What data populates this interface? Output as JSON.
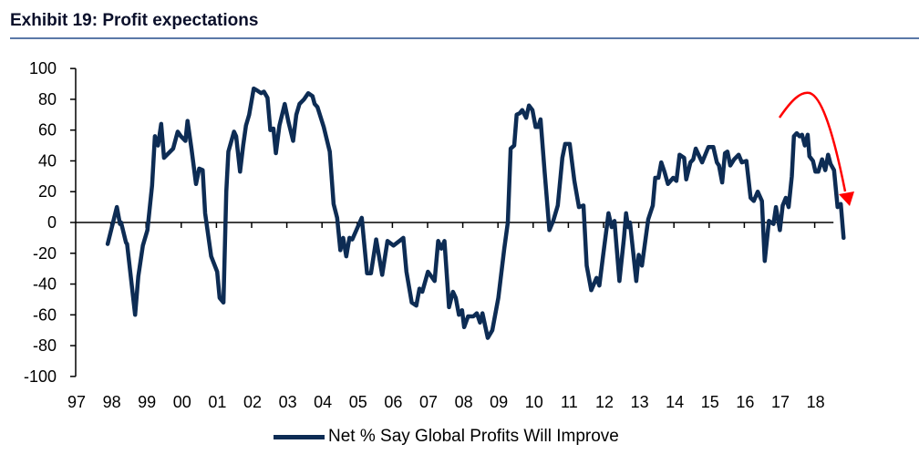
{
  "header": {
    "title": "Exhibit 19: Profit expectations"
  },
  "chart_data": {
    "type": "line",
    "title": "Exhibit 19: Profit expectations",
    "xlabel": "",
    "ylabel": "",
    "ylim": [
      -100,
      100
    ],
    "yticks": [
      "100",
      "80",
      "60",
      "40",
      "20",
      "0",
      "-20",
      "-40",
      "-60",
      "-80",
      "-100"
    ],
    "xticks": [
      "97",
      "98",
      "99",
      "00",
      "01",
      "02",
      "03",
      "04",
      "05",
      "06",
      "07",
      "08",
      "09",
      "10",
      "11",
      "12",
      "13",
      "14",
      "15",
      "16",
      "17",
      "18"
    ],
    "xlim": [
      1997,
      2019
    ],
    "grid": false,
    "legend_position": "bottom",
    "line_color": "#0d2c54",
    "annotation": {
      "type": "red-arrow-curve-down",
      "color": "#ff0000"
    },
    "series": [
      {
        "name": "Net % Say Global Profits Will Improve",
        "points": [
          [
            1997.91,
            -14
          ],
          [
            1998.17,
            10
          ],
          [
            1998.26,
            -1
          ],
          [
            1998.29,
            0
          ],
          [
            1998.43,
            -13
          ],
          [
            1998.46,
            -14
          ],
          [
            1998.69,
            -60
          ],
          [
            1998.78,
            -35
          ],
          [
            1998.91,
            -15
          ],
          [
            1999.04,
            -5
          ],
          [
            1999.17,
            24
          ],
          [
            1999.25,
            56
          ],
          [
            1999.34,
            50
          ],
          [
            1999.43,
            64
          ],
          [
            1999.51,
            42
          ],
          [
            1999.64,
            45
          ],
          [
            1999.77,
            48
          ],
          [
            1999.9,
            59
          ],
          [
            1999.99,
            56
          ],
          [
            2000.12,
            53
          ],
          [
            2000.18,
            66
          ],
          [
            2000.29,
            48
          ],
          [
            2000.42,
            25
          ],
          [
            2000.51,
            35
          ],
          [
            2000.61,
            34
          ],
          [
            2000.68,
            6
          ],
          [
            2000.85,
            -22
          ],
          [
            2001.02,
            -32
          ],
          [
            2001.09,
            -49
          ],
          [
            2001.2,
            -52
          ],
          [
            2001.28,
            20
          ],
          [
            2001.34,
            46
          ],
          [
            2001.5,
            59
          ],
          [
            2001.56,
            56
          ],
          [
            2001.67,
            33
          ],
          [
            2001.76,
            50
          ],
          [
            2001.84,
            63
          ],
          [
            2001.93,
            70
          ],
          [
            2002.06,
            87
          ],
          [
            2002.14,
            86
          ],
          [
            2002.27,
            84
          ],
          [
            2002.35,
            85
          ],
          [
            2002.45,
            81
          ],
          [
            2002.53,
            60
          ],
          [
            2002.62,
            61
          ],
          [
            2002.69,
            45
          ],
          [
            2002.79,
            63
          ],
          [
            2002.94,
            77
          ],
          [
            2003.05,
            65
          ],
          [
            2003.18,
            53
          ],
          [
            2003.27,
            70
          ],
          [
            2003.36,
            77
          ],
          [
            2003.49,
            80
          ],
          [
            2003.61,
            84
          ],
          [
            2003.73,
            82
          ],
          [
            2003.79,
            77
          ],
          [
            2003.87,
            75
          ],
          [
            2004.05,
            62
          ],
          [
            2004.22,
            46
          ],
          [
            2004.33,
            12
          ],
          [
            2004.43,
            3
          ],
          [
            2004.52,
            -18
          ],
          [
            2004.6,
            -10
          ],
          [
            2004.69,
            -22
          ],
          [
            2004.78,
            -10
          ],
          [
            2004.86,
            -11
          ],
          [
            2005.13,
            3
          ],
          [
            2005.28,
            -33
          ],
          [
            2005.39,
            -33
          ],
          [
            2005.54,
            -11
          ],
          [
            2005.71,
            -34
          ],
          [
            2005.86,
            -12
          ],
          [
            2006.03,
            -15
          ],
          [
            2006.2,
            -12
          ],
          [
            2006.31,
            -10
          ],
          [
            2006.4,
            -32
          ],
          [
            2006.55,
            -52
          ],
          [
            2006.68,
            -54
          ],
          [
            2006.77,
            -43
          ],
          [
            2006.85,
            -45
          ],
          [
            2007.01,
            -32
          ],
          [
            2007.2,
            -38
          ],
          [
            2007.3,
            -12
          ],
          [
            2007.39,
            -17
          ],
          [
            2007.48,
            -12
          ],
          [
            2007.61,
            -55
          ],
          [
            2007.72,
            -45
          ],
          [
            2007.8,
            -49
          ],
          [
            2007.89,
            -60
          ],
          [
            2007.98,
            -57
          ],
          [
            2008.04,
            -68
          ],
          [
            2008.15,
            -61
          ],
          [
            2008.3,
            -61
          ],
          [
            2008.4,
            -59
          ],
          [
            2008.49,
            -65
          ],
          [
            2008.56,
            -59
          ],
          [
            2008.71,
            -75
          ],
          [
            2008.84,
            -70
          ],
          [
            2009.01,
            -49
          ],
          [
            2009.18,
            -17
          ],
          [
            2009.28,
            0
          ],
          [
            2009.36,
            48
          ],
          [
            2009.46,
            50
          ],
          [
            2009.53,
            70
          ],
          [
            2009.62,
            71
          ],
          [
            2009.69,
            73
          ],
          [
            2009.8,
            68
          ],
          [
            2009.88,
            76
          ],
          [
            2009.98,
            73
          ],
          [
            2010.07,
            62
          ],
          [
            2010.14,
            62
          ],
          [
            2010.21,
            67
          ],
          [
            2010.33,
            32
          ],
          [
            2010.46,
            -5
          ],
          [
            2010.57,
            1
          ],
          [
            2010.7,
            11
          ],
          [
            2010.83,
            42
          ],
          [
            2010.91,
            51
          ],
          [
            2011.04,
            51
          ],
          [
            2011.17,
            27
          ],
          [
            2011.3,
            10
          ],
          [
            2011.43,
            11
          ],
          [
            2011.52,
            -28
          ],
          [
            2011.65,
            -44
          ],
          [
            2011.8,
            -36
          ],
          [
            2011.88,
            -41
          ],
          [
            2011.99,
            -21
          ],
          [
            2012.08,
            -5
          ],
          [
            2012.14,
            6
          ],
          [
            2012.23,
            -3
          ],
          [
            2012.31,
            1
          ],
          [
            2012.45,
            -38
          ],
          [
            2012.58,
            -10
          ],
          [
            2012.64,
            6
          ],
          [
            2012.7,
            -3
          ],
          [
            2012.75,
            0
          ],
          [
            2012.93,
            -38
          ],
          [
            2013.0,
            -21
          ],
          [
            2013.09,
            -28
          ],
          [
            2013.27,
            2
          ],
          [
            2013.4,
            11
          ],
          [
            2013.47,
            29
          ],
          [
            2013.56,
            29
          ],
          [
            2013.64,
            39
          ],
          [
            2013.73,
            33
          ],
          [
            2013.83,
            25
          ],
          [
            2013.98,
            29
          ],
          [
            2014.07,
            27
          ],
          [
            2014.16,
            44
          ],
          [
            2014.29,
            42
          ],
          [
            2014.35,
            28
          ],
          [
            2014.47,
            39
          ],
          [
            2014.55,
            41
          ],
          [
            2014.62,
            48
          ],
          [
            2014.8,
            39
          ],
          [
            2014.98,
            49
          ],
          [
            2015.12,
            49
          ],
          [
            2015.22,
            39
          ],
          [
            2015.28,
            37
          ],
          [
            2015.37,
            26
          ],
          [
            2015.45,
            45
          ],
          [
            2015.52,
            46
          ],
          [
            2015.6,
            37
          ],
          [
            2015.71,
            41
          ],
          [
            2015.84,
            44
          ],
          [
            2015.93,
            39
          ],
          [
            2016.06,
            40
          ],
          [
            2016.18,
            16
          ],
          [
            2016.27,
            14
          ],
          [
            2016.38,
            20
          ],
          [
            2016.5,
            14
          ],
          [
            2016.58,
            -25
          ],
          [
            2016.7,
            1
          ],
          [
            2016.83,
            -1
          ],
          [
            2016.9,
            10
          ],
          [
            2017.01,
            -5
          ],
          [
            2017.09,
            11
          ],
          [
            2017.18,
            16
          ],
          [
            2017.26,
            10
          ],
          [
            2017.35,
            30
          ],
          [
            2017.41,
            56
          ],
          [
            2017.49,
            58
          ],
          [
            2017.57,
            56
          ],
          [
            2017.64,
            57
          ],
          [
            2017.72,
            50
          ],
          [
            2017.8,
            57
          ],
          [
            2017.85,
            43
          ],
          [
            2017.95,
            40
          ],
          [
            2018.02,
            33
          ],
          [
            2018.1,
            33
          ],
          [
            2018.21,
            41
          ],
          [
            2018.3,
            34
          ],
          [
            2018.38,
            44
          ],
          [
            2018.45,
            38
          ],
          [
            2018.55,
            34
          ],
          [
            2018.65,
            10
          ],
          [
            2018.74,
            12
          ],
          [
            2018.82,
            -10
          ]
        ]
      }
    ]
  }
}
